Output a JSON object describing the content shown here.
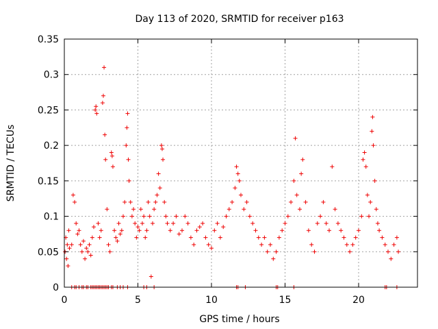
{
  "chart_data": {
    "type": "scatter",
    "title": "Day 113 of 2020, SRMTID for receiver p163",
    "xlabel": "GPS time / hours",
    "ylabel": "SRMTID / TECUs",
    "xlim": [
      0,
      24
    ],
    "ylim": [
      0,
      0.35
    ],
    "xticks": [
      0,
      5,
      10,
      15,
      20
    ],
    "xtick_labels": [
      "0",
      "5",
      "10",
      "15",
      "20"
    ],
    "yticks": [
      0,
      0.05,
      0.1,
      0.15,
      0.2,
      0.25,
      0.3,
      0.35
    ],
    "ytick_labels": [
      "0",
      "0.05",
      "0.1",
      "0.15",
      "0.2",
      "0.25",
      "0.3",
      "0.35"
    ],
    "grid": true,
    "marker": "+",
    "color": "#ee0000",
    "series": [
      {
        "name": "SRMTID",
        "points": [
          [
            0.05,
            0.05
          ],
          [
            0.1,
            0.07
          ],
          [
            0.15,
            0.04
          ],
          [
            0.2,
            0.06
          ],
          [
            0.25,
            0.03
          ],
          [
            0.3,
            0.08
          ],
          [
            0.35,
            0.055
          ],
          [
            0.5,
            0.06
          ],
          [
            0.6,
            0.13
          ],
          [
            0.7,
            0.12
          ],
          [
            0.8,
            0.09
          ],
          [
            0.9,
            0.075
          ],
          [
            1.0,
            0.08
          ],
          [
            1.1,
            0.06
          ],
          [
            1.2,
            0.05
          ],
          [
            1.3,
            0.065
          ],
          [
            1.4,
            0.04
          ],
          [
            1.5,
            0.055
          ],
          [
            1.6,
            0.05
          ],
          [
            1.7,
            0.06
          ],
          [
            1.8,
            0.045
          ],
          [
            1.9,
            0.07
          ],
          [
            2.0,
            0.085
          ],
          [
            2.1,
            0.25
          ],
          [
            2.15,
            0.255
          ],
          [
            2.2,
            0.245
          ],
          [
            2.3,
            0.09
          ],
          [
            2.4,
            0.07
          ],
          [
            2.5,
            0.08
          ],
          [
            2.6,
            0.26
          ],
          [
            2.65,
            0.27
          ],
          [
            2.7,
            0.31
          ],
          [
            2.75,
            0.215
          ],
          [
            2.8,
            0.18
          ],
          [
            2.9,
            0.11
          ],
          [
            3.0,
            0.06
          ],
          [
            3.1,
            0.05
          ],
          [
            3.2,
            0.19
          ],
          [
            3.25,
            0.185
          ],
          [
            3.3,
            0.17
          ],
          [
            3.4,
            0.08
          ],
          [
            3.5,
            0.07
          ],
          [
            3.6,
            0.065
          ],
          [
            3.7,
            0.09
          ],
          [
            3.8,
            0.075
          ],
          [
            3.9,
            0.08
          ],
          [
            4.0,
            0.1
          ],
          [
            4.1,
            0.12
          ],
          [
            4.2,
            0.2
          ],
          [
            4.25,
            0.225
          ],
          [
            4.3,
            0.245
          ],
          [
            4.35,
            0.18
          ],
          [
            4.4,
            0.15
          ],
          [
            4.5,
            0.12
          ],
          [
            4.6,
            0.1
          ],
          [
            4.7,
            0.11
          ],
          [
            4.8,
            0.09
          ],
          [
            4.9,
            0.07
          ],
          [
            5.0,
            0.085
          ],
          [
            5.1,
            0.08
          ],
          [
            5.2,
            0.11
          ],
          [
            5.3,
            0.09
          ],
          [
            5.4,
            0.1
          ],
          [
            5.5,
            0.07
          ],
          [
            5.6,
            0.08
          ],
          [
            5.7,
            0.12
          ],
          [
            5.8,
            0.1
          ],
          [
            5.9,
            0.015
          ],
          [
            6.0,
            0.09
          ],
          [
            6.1,
            0.11
          ],
          [
            6.2,
            0.12
          ],
          [
            6.3,
            0.13
          ],
          [
            6.4,
            0.16
          ],
          [
            6.5,
            0.14
          ],
          [
            6.6,
            0.2
          ],
          [
            6.65,
            0.195
          ],
          [
            6.7,
            0.18
          ],
          [
            6.8,
            0.12
          ],
          [
            6.9,
            0.1
          ],
          [
            7.0,
            0.09
          ],
          [
            7.2,
            0.08
          ],
          [
            7.4,
            0.09
          ],
          [
            7.6,
            0.1
          ],
          [
            7.8,
            0.075
          ],
          [
            8.0,
            0.08
          ],
          [
            8.2,
            0.1
          ],
          [
            8.4,
            0.09
          ],
          [
            8.6,
            0.07
          ],
          [
            8.8,
            0.06
          ],
          [
            9.0,
            0.08
          ],
          [
            9.2,
            0.085
          ],
          [
            9.4,
            0.09
          ],
          [
            9.6,
            0.07
          ],
          [
            9.8,
            0.06
          ],
          [
            10.0,
            0.055
          ],
          [
            10.2,
            0.08
          ],
          [
            10.4,
            0.09
          ],
          [
            10.6,
            0.07
          ],
          [
            10.8,
            0.085
          ],
          [
            11.0,
            0.1
          ],
          [
            11.2,
            0.11
          ],
          [
            11.4,
            0.12
          ],
          [
            11.6,
            0.14
          ],
          [
            11.7,
            0.17
          ],
          [
            11.8,
            0.16
          ],
          [
            11.9,
            0.15
          ],
          [
            12.0,
            0.13
          ],
          [
            12.2,
            0.11
          ],
          [
            12.4,
            0.12
          ],
          [
            12.6,
            0.1
          ],
          [
            12.8,
            0.09
          ],
          [
            13.0,
            0.08
          ],
          [
            13.2,
            0.07
          ],
          [
            13.4,
            0.06
          ],
          [
            13.6,
            0.07
          ],
          [
            13.8,
            0.05
          ],
          [
            14.0,
            0.06
          ],
          [
            14.2,
            0.04
          ],
          [
            14.4,
            0.05
          ],
          [
            14.6,
            0.07
          ],
          [
            14.8,
            0.08
          ],
          [
            15.0,
            0.09
          ],
          [
            15.2,
            0.1
          ],
          [
            15.4,
            0.12
          ],
          [
            15.6,
            0.15
          ],
          [
            15.7,
            0.21
          ],
          [
            15.8,
            0.13
          ],
          [
            16.0,
            0.11
          ],
          [
            16.1,
            0.16
          ],
          [
            16.2,
            0.18
          ],
          [
            16.4,
            0.12
          ],
          [
            16.6,
            0.08
          ],
          [
            16.8,
            0.06
          ],
          [
            17.0,
            0.05
          ],
          [
            17.2,
            0.09
          ],
          [
            17.4,
            0.1
          ],
          [
            17.6,
            0.12
          ],
          [
            17.8,
            0.09
          ],
          [
            18.0,
            0.08
          ],
          [
            18.2,
            0.17
          ],
          [
            18.4,
            0.11
          ],
          [
            18.6,
            0.09
          ],
          [
            18.8,
            0.08
          ],
          [
            19.0,
            0.07
          ],
          [
            19.2,
            0.06
          ],
          [
            19.4,
            0.05
          ],
          [
            19.6,
            0.06
          ],
          [
            19.8,
            0.07
          ],
          [
            20.0,
            0.08
          ],
          [
            20.2,
            0.1
          ],
          [
            20.3,
            0.18
          ],
          [
            20.4,
            0.19
          ],
          [
            20.5,
            0.17
          ],
          [
            20.6,
            0.13
          ],
          [
            20.7,
            0.1
          ],
          [
            20.8,
            0.12
          ],
          [
            20.9,
            0.22
          ],
          [
            20.95,
            0.24
          ],
          [
            21.0,
            0.2
          ],
          [
            21.1,
            0.15
          ],
          [
            21.2,
            0.11
          ],
          [
            21.3,
            0.09
          ],
          [
            21.4,
            0.08
          ],
          [
            21.6,
            0.07
          ],
          [
            21.8,
            0.06
          ],
          [
            22.0,
            0.05
          ],
          [
            22.2,
            0.04
          ],
          [
            22.4,
            0.06
          ],
          [
            22.6,
            0.07
          ],
          [
            22.7,
            0.05
          ]
        ]
      }
    ],
    "zero_points_x": [
      0.5,
      0.7,
      0.8,
      1.0,
      1.2,
      1.3,
      1.5,
      1.6,
      1.8,
      1.9,
      2.0,
      2.1,
      2.2,
      2.3,
      2.4,
      2.5,
      2.6,
      2.7,
      2.8,
      2.9,
      3.0,
      3.2,
      3.3,
      3.6,
      3.8,
      4.0,
      4.3,
      5.4,
      5.6,
      6.1,
      11.7,
      11.8,
      12.3,
      14.4,
      14.5,
      15.6,
      21.8,
      21.9,
      22.6
    ]
  }
}
